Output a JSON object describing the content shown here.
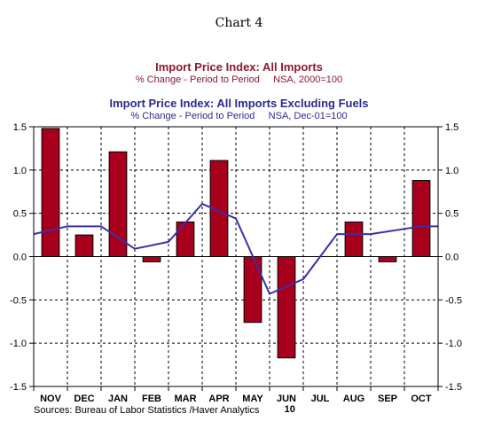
{
  "header": {
    "chart_number": "Chart 4"
  },
  "colors": {
    "bar_fill": "#a8001c",
    "line": "#3c2ea8",
    "title1": "#8b1a2b",
    "title2": "#2c2a8c"
  },
  "chart_data": {
    "type": "bar",
    "title": "Import Price Index: All Imports",
    "subtitle": "% Change - Period to Period     NSA, 2000=100",
    "title2": "Import Price Index: All Imports Excluding Fuels",
    "subtitle2": "% Change - Period to Period     NSA, Dec-01=100",
    "categories": [
      "NOV",
      "DEC",
      "JAN",
      "FEB",
      "MAR",
      "APR",
      "MAY",
      "JUN",
      "JUL",
      "AUG",
      "SEP",
      "OCT"
    ],
    "x_year_label": "10",
    "ylim": [
      -1.5,
      1.5
    ],
    "yticks": [
      "1.5",
      "1.0",
      "0.5",
      "0.0",
      "-0.5",
      "-1.0",
      "-1.5"
    ],
    "ytick_values": [
      1.5,
      1.0,
      0.5,
      0.0,
      -0.5,
      -1.0,
      -1.5
    ],
    "grid": true,
    "series": [
      {
        "type": "bar",
        "values": [
          1.48,
          0.25,
          1.21,
          -0.06,
          0.4,
          1.11,
          -0.76,
          -1.17,
          null,
          0.4,
          -0.06,
          0.88
        ]
      },
      {
        "type": "line",
        "values": [
          0.26,
          0.35,
          0.35,
          0.09,
          0.17,
          0.61,
          0.44,
          -0.43,
          -0.26,
          0.26,
          0.26,
          0.35
        ]
      }
    ],
    "source": "Sources:  Bureau of Labor Statistics /Haver Analytics"
  }
}
